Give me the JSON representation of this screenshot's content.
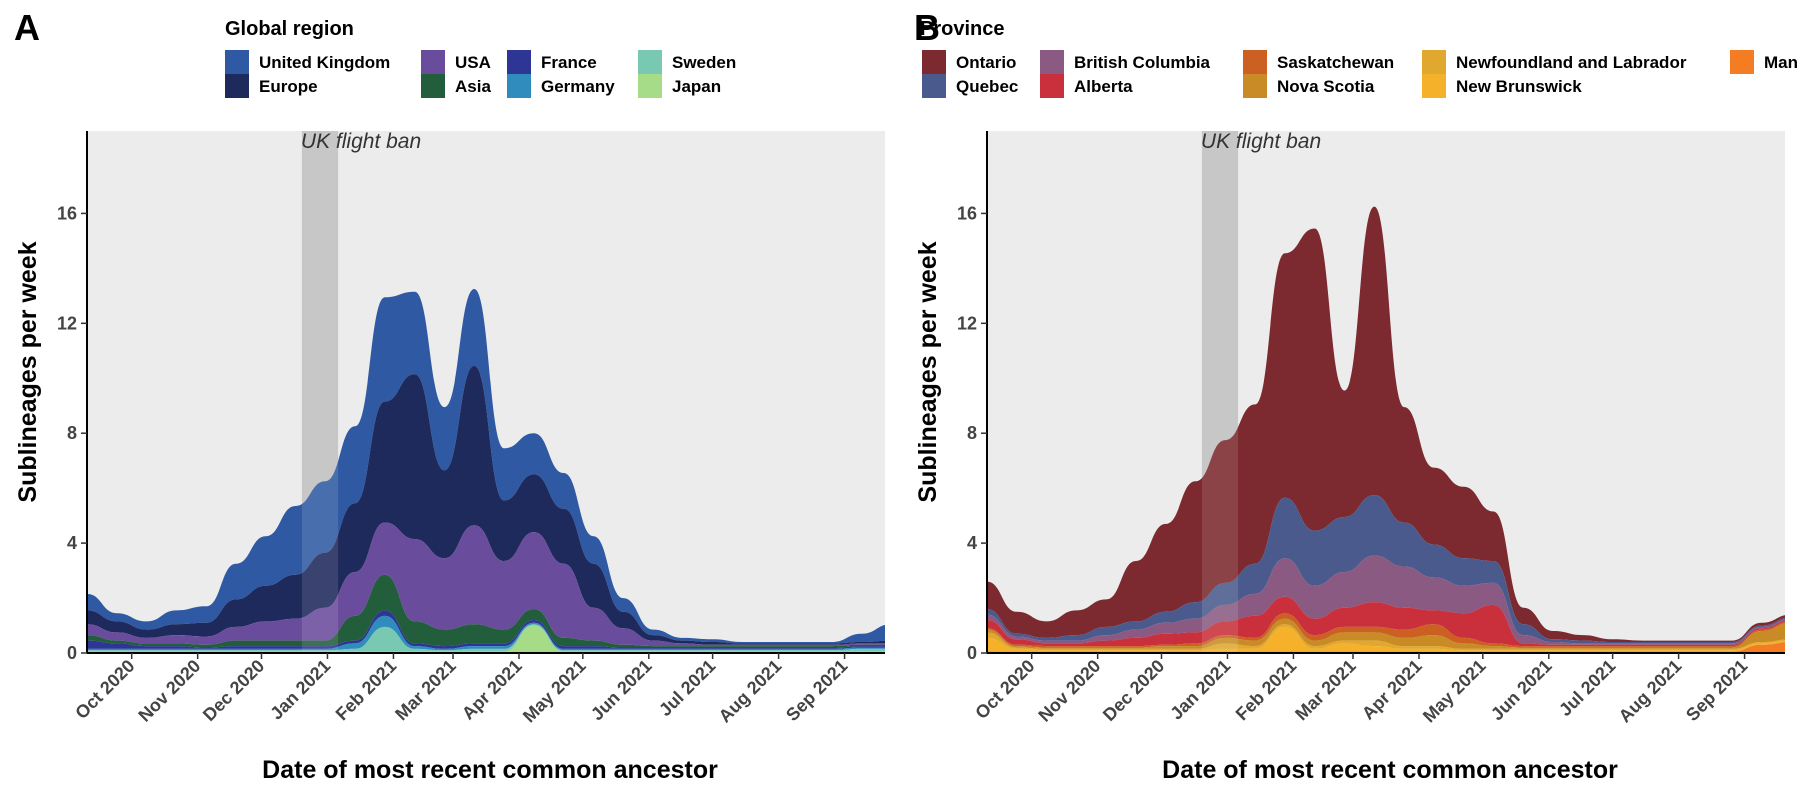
{
  "chart_data": [
    {
      "panel": "A",
      "type": "area",
      "stacked": true,
      "legend_title": "Global region",
      "legend_position": "top",
      "series": [
        {
          "name": "United Kingdom",
          "color": "#2f5aa3"
        },
        {
          "name": "Europe",
          "color": "#1f2a5c"
        },
        {
          "name": "USA",
          "color": "#6a4c9c"
        },
        {
          "name": "Asia",
          "color": "#235e3c"
        },
        {
          "name": "France",
          "color": "#2d3595"
        },
        {
          "name": "Germany",
          "color": "#2f8cbd"
        },
        {
          "name": "Sweden",
          "color": "#79c9b2"
        },
        {
          "name": "Japan",
          "color": "#a6dc87"
        }
      ],
      "x_dates": [
        "2020-09-10",
        "2020-09-24",
        "2020-10-08",
        "2020-10-22",
        "2020-11-05",
        "2020-11-19",
        "2020-12-03",
        "2020-12-17",
        "2020-12-31",
        "2021-01-14",
        "2021-01-28",
        "2021-02-11",
        "2021-02-25",
        "2021-03-11",
        "2021-03-25",
        "2021-04-08",
        "2021-04-22",
        "2021-05-06",
        "2021-05-20",
        "2021-06-03",
        "2021-06-17",
        "2021-07-01",
        "2021-07-15",
        "2021-07-29",
        "2021-08-12",
        "2021-08-26",
        "2021-09-09",
        "2021-09-23"
      ],
      "values": {
        "United Kingdom": [
          0.6,
          0.3,
          0.3,
          0.5,
          0.6,
          1.3,
          1.8,
          2.5,
          2.6,
          2.8,
          3.8,
          3.0,
          2.3,
          2.8,
          1.9,
          1.5,
          1.3,
          1.0,
          0.5,
          0.2,
          0.1,
          0.1,
          0.05,
          0.05,
          0.05,
          0.05,
          0.3,
          0.6
        ],
        "Europe": [
          0.5,
          0.4,
          0.3,
          0.4,
          0.5,
          1.0,
          1.3,
          1.6,
          2.0,
          2.5,
          4.4,
          6.0,
          3.2,
          5.8,
          2.2,
          2.1,
          2.0,
          1.6,
          0.6,
          0.2,
          0.1,
          0.1,
          0.05,
          0.05,
          0.05,
          0.05,
          0.05,
          0.1
        ],
        "USA": [
          0.4,
          0.3,
          0.2,
          0.3,
          0.3,
          0.5,
          0.7,
          0.8,
          1.2,
          1.6,
          1.9,
          3.0,
          2.6,
          3.6,
          2.5,
          2.8,
          2.7,
          1.2,
          0.6,
          0.2,
          0.1,
          0.05,
          0.05,
          0.05,
          0.05,
          0.05,
          0.05,
          0.05
        ],
        "Asia": [
          0.2,
          0.1,
          0.1,
          0.1,
          0.1,
          0.2,
          0.2,
          0.2,
          0.2,
          0.9,
          1.3,
          0.8,
          0.6,
          0.7,
          0.5,
          0.4,
          0.3,
          0.2,
          0.1,
          0.05,
          0.05,
          0.05,
          0.05,
          0.05,
          0.05,
          0.05,
          0.05,
          0.05
        ],
        "France": [
          0.3,
          0.2,
          0.1,
          0.1,
          0.05,
          0.1,
          0.1,
          0.1,
          0.1,
          0.1,
          0.2,
          0.1,
          0.1,
          0.1,
          0.1,
          0.1,
          0.1,
          0.1,
          0.05,
          0.05,
          0.05,
          0.05,
          0.05,
          0.05,
          0.05,
          0.05,
          0.05,
          0.05
        ],
        "Germany": [
          0.05,
          0.05,
          0.05,
          0.05,
          0.05,
          0.05,
          0.05,
          0.05,
          0.05,
          0.2,
          0.4,
          0.1,
          0.05,
          0.1,
          0.1,
          0.05,
          0.05,
          0.05,
          0.05,
          0.05,
          0.05,
          0.05,
          0.05,
          0.05,
          0.05,
          0.05,
          0.05,
          0.05
        ],
        "Sweden": [
          0.05,
          0.05,
          0.05,
          0.05,
          0.05,
          0.05,
          0.05,
          0.05,
          0.05,
          0.1,
          0.9,
          0.1,
          0.05,
          0.1,
          0.1,
          0.05,
          0.05,
          0.05,
          0.05,
          0.05,
          0.05,
          0.05,
          0.05,
          0.05,
          0.05,
          0.05,
          0.1,
          0.1
        ],
        "Japan": [
          0.05,
          0.05,
          0.05,
          0.05,
          0.05,
          0.05,
          0.05,
          0.05,
          0.05,
          0.05,
          0.05,
          0.05,
          0.05,
          0.05,
          0.05,
          1.0,
          0.05,
          0.05,
          0.05,
          0.05,
          0.05,
          0.05,
          0.05,
          0.05,
          0.05,
          0.05,
          0.05,
          0.05
        ]
      },
      "xlabel": "Date of most recent common ancestor",
      "ylabel": "Sublineages per week",
      "x_ticks": [
        {
          "label": "Oct 2020",
          "date": "2020-10-01"
        },
        {
          "label": "Nov 2020",
          "date": "2020-11-01"
        },
        {
          "label": "Dec 2020",
          "date": "2020-12-01"
        },
        {
          "label": "Jan 2021",
          "date": "2021-01-01"
        },
        {
          "label": "Feb 2021",
          "date": "2021-02-01"
        },
        {
          "label": "Mar 2021",
          "date": "2021-03-01"
        },
        {
          "label": "Apr 2021",
          "date": "2021-04-01"
        },
        {
          "label": "May 2021",
          "date": "2021-05-01"
        },
        {
          "label": "Jun 2021",
          "date": "2021-06-01"
        },
        {
          "label": "Jul 2021",
          "date": "2021-07-01"
        },
        {
          "label": "Aug 2021",
          "date": "2021-08-01"
        },
        {
          "label": "Sep 2021",
          "date": "2021-09-01"
        }
      ],
      "y_ticks": [
        0,
        4,
        8,
        12,
        16
      ],
      "xlim": [
        "2020-09-10",
        "2021-09-20"
      ],
      "ylim": [
        0,
        19
      ],
      "annotation": {
        "text": "UK flight ban",
        "start": "2020-12-20",
        "end": "2021-01-06"
      }
    },
    {
      "panel": "B",
      "type": "area",
      "stacked": true,
      "legend_title": "Province",
      "legend_position": "top",
      "series": [
        {
          "name": "Ontario",
          "color": "#7c2a2f"
        },
        {
          "name": "Quebec",
          "color": "#4a5a8c"
        },
        {
          "name": "British Columbia",
          "color": "#8a5a82"
        },
        {
          "name": "Alberta",
          "color": "#c9303c"
        },
        {
          "name": "Saskatchewan",
          "color": "#cc5f22"
        },
        {
          "name": "Nova Scotia",
          "color": "#c98b25"
        },
        {
          "name": "Newfoundland and Labrador",
          "color": "#e0a82e"
        },
        {
          "name": "New Brunswick",
          "color": "#f5b12a"
        },
        {
          "name": "Man",
          "color": "#f47c22"
        }
      ],
      "x_dates": [
        "2020-09-10",
        "2020-09-24",
        "2020-10-08",
        "2020-10-22",
        "2020-11-05",
        "2020-11-19",
        "2020-12-03",
        "2020-12-17",
        "2020-12-31",
        "2021-01-14",
        "2021-01-28",
        "2021-02-11",
        "2021-02-25",
        "2021-03-11",
        "2021-03-25",
        "2021-04-08",
        "2021-04-22",
        "2021-05-06",
        "2021-05-20",
        "2021-06-03",
        "2021-06-17",
        "2021-07-01",
        "2021-07-15",
        "2021-07-29",
        "2021-08-12",
        "2021-08-26",
        "2021-09-09",
        "2021-09-23"
      ],
      "values": {
        "Ontario": [
          1.0,
          0.8,
          0.6,
          0.9,
          1.0,
          2.2,
          3.2,
          4.4,
          5.2,
          5.8,
          8.9,
          11.0,
          4.6,
          10.5,
          4.2,
          2.8,
          2.6,
          1.8,
          0.6,
          0.3,
          0.2,
          0.1,
          0.05,
          0.05,
          0.05,
          0.05,
          0.1,
          0.1
        ],
        "Quebec": [
          0.2,
          0.1,
          0.1,
          0.2,
          0.3,
          0.3,
          0.4,
          0.6,
          0.8,
          1.1,
          2.2,
          2.0,
          2.0,
          2.2,
          1.6,
          1.2,
          1.0,
          0.8,
          0.4,
          0.1,
          0.1,
          0.05,
          0.05,
          0.05,
          0.05,
          0.05,
          0.05,
          0.05
        ],
        "British Columbia": [
          0.2,
          0.1,
          0.1,
          0.1,
          0.2,
          0.3,
          0.4,
          0.5,
          0.6,
          0.8,
          1.4,
          1.2,
          1.3,
          1.7,
          1.5,
          1.2,
          1.0,
          0.8,
          0.3,
          0.1,
          0.05,
          0.05,
          0.05,
          0.05,
          0.05,
          0.05,
          0.05,
          0.05
        ],
        "Alberta": [
          0.3,
          0.2,
          0.1,
          0.1,
          0.2,
          0.3,
          0.4,
          0.4,
          0.5,
          0.8,
          0.6,
          0.6,
          0.7,
          0.9,
          0.8,
          0.5,
          0.9,
          1.4,
          0.1,
          0.05,
          0.05,
          0.05,
          0.05,
          0.05,
          0.05,
          0.05,
          0.05,
          0.05
        ],
        "Saskatchewan": [
          0.05,
          0.05,
          0.05,
          0.05,
          0.05,
          0.05,
          0.05,
          0.1,
          0.1,
          0.1,
          0.2,
          0.2,
          0.2,
          0.2,
          0.3,
          0.4,
          0.2,
          0.1,
          0.05,
          0.05,
          0.05,
          0.05,
          0.05,
          0.05,
          0.05,
          0.05,
          0.05,
          0.05
        ],
        "Nova Scotia": [
          0.1,
          0.05,
          0.05,
          0.05,
          0.05,
          0.05,
          0.1,
          0.1,
          0.2,
          0.2,
          0.2,
          0.2,
          0.3,
          0.3,
          0.3,
          0.4,
          0.2,
          0.1,
          0.05,
          0.05,
          0.05,
          0.05,
          0.05,
          0.05,
          0.05,
          0.05,
          0.4,
          0.6
        ],
        "Newfoundland and Labrador": [
          0.2,
          0.05,
          0.05,
          0.05,
          0.05,
          0.05,
          0.05,
          0.05,
          0.2,
          0.1,
          0.1,
          0.1,
          0.1,
          0.2,
          0.1,
          0.1,
          0.05,
          0.05,
          0.05,
          0.05,
          0.05,
          0.05,
          0.05,
          0.05,
          0.05,
          0.05,
          0.05,
          0.05
        ],
        "New Brunswick": [
          0.5,
          0.1,
          0.05,
          0.05,
          0.05,
          0.05,
          0.05,
          0.05,
          0.1,
          0.1,
          0.9,
          0.1,
          0.3,
          0.2,
          0.1,
          0.1,
          0.05,
          0.05,
          0.05,
          0.05,
          0.05,
          0.05,
          0.05,
          0.05,
          0.05,
          0.05,
          0.05,
          0.05
        ],
        "Man": [
          0.05,
          0.05,
          0.05,
          0.05,
          0.05,
          0.05,
          0.05,
          0.05,
          0.05,
          0.05,
          0.05,
          0.05,
          0.05,
          0.05,
          0.05,
          0.05,
          0.05,
          0.05,
          0.05,
          0.05,
          0.05,
          0.05,
          0.05,
          0.05,
          0.05,
          0.05,
          0.3,
          0.4
        ]
      },
      "xlabel": "Date of most recent common ancestor",
      "ylabel": "Sublineages per week",
      "x_ticks": [
        {
          "label": "Oct 2020",
          "date": "2020-10-01"
        },
        {
          "label": "Nov 2020",
          "date": "2020-11-01"
        },
        {
          "label": "Dec 2020",
          "date": "2020-12-01"
        },
        {
          "label": "Jan 2021",
          "date": "2021-01-01"
        },
        {
          "label": "Feb 2021",
          "date": "2021-02-01"
        },
        {
          "label": "Mar 2021",
          "date": "2021-03-01"
        },
        {
          "label": "Apr 2021",
          "date": "2021-04-01"
        },
        {
          "label": "May 2021",
          "date": "2021-05-01"
        },
        {
          "label": "Jun 2021",
          "date": "2021-06-01"
        },
        {
          "label": "Jul 2021",
          "date": "2021-07-01"
        },
        {
          "label": "Aug 2021",
          "date": "2021-08-01"
        },
        {
          "label": "Sep 2021",
          "date": "2021-09-01"
        }
      ],
      "y_ticks": [
        0,
        4,
        8,
        12,
        16
      ],
      "xlim": [
        "2020-09-10",
        "2021-09-20"
      ],
      "ylim": [
        0,
        19
      ],
      "annotation": {
        "text": "UK flight ban",
        "start": "2020-12-20",
        "end": "2021-01-06"
      }
    }
  ],
  "panel_background": "#ececec",
  "flight_ban_band_color": "#c0c0c0"
}
